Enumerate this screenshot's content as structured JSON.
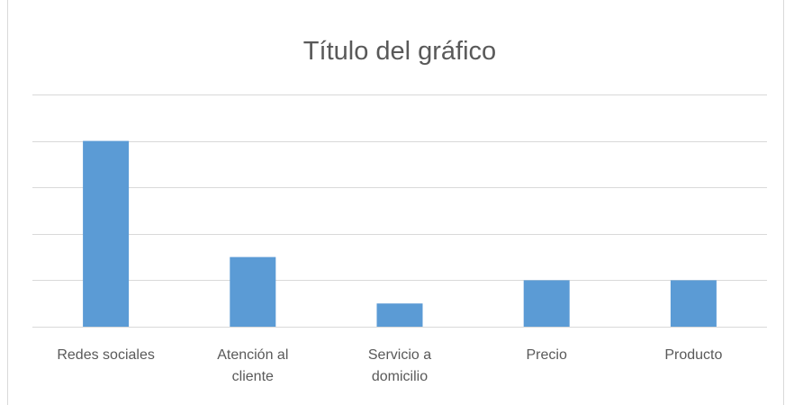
{
  "chart_data": {
    "type": "bar",
    "title": "Título del gráfico",
    "categories": [
      "Redes sociales",
      "Atención al cliente",
      "Servicio a domicilio",
      "Precio",
      "Producto"
    ],
    "values": [
      4,
      1.5,
      0.5,
      1,
      1
    ],
    "color": "#5b9bd5",
    "ylim": [
      0,
      5
    ],
    "yticks": [
      0,
      1,
      2,
      3,
      4,
      5
    ],
    "grid": true
  }
}
